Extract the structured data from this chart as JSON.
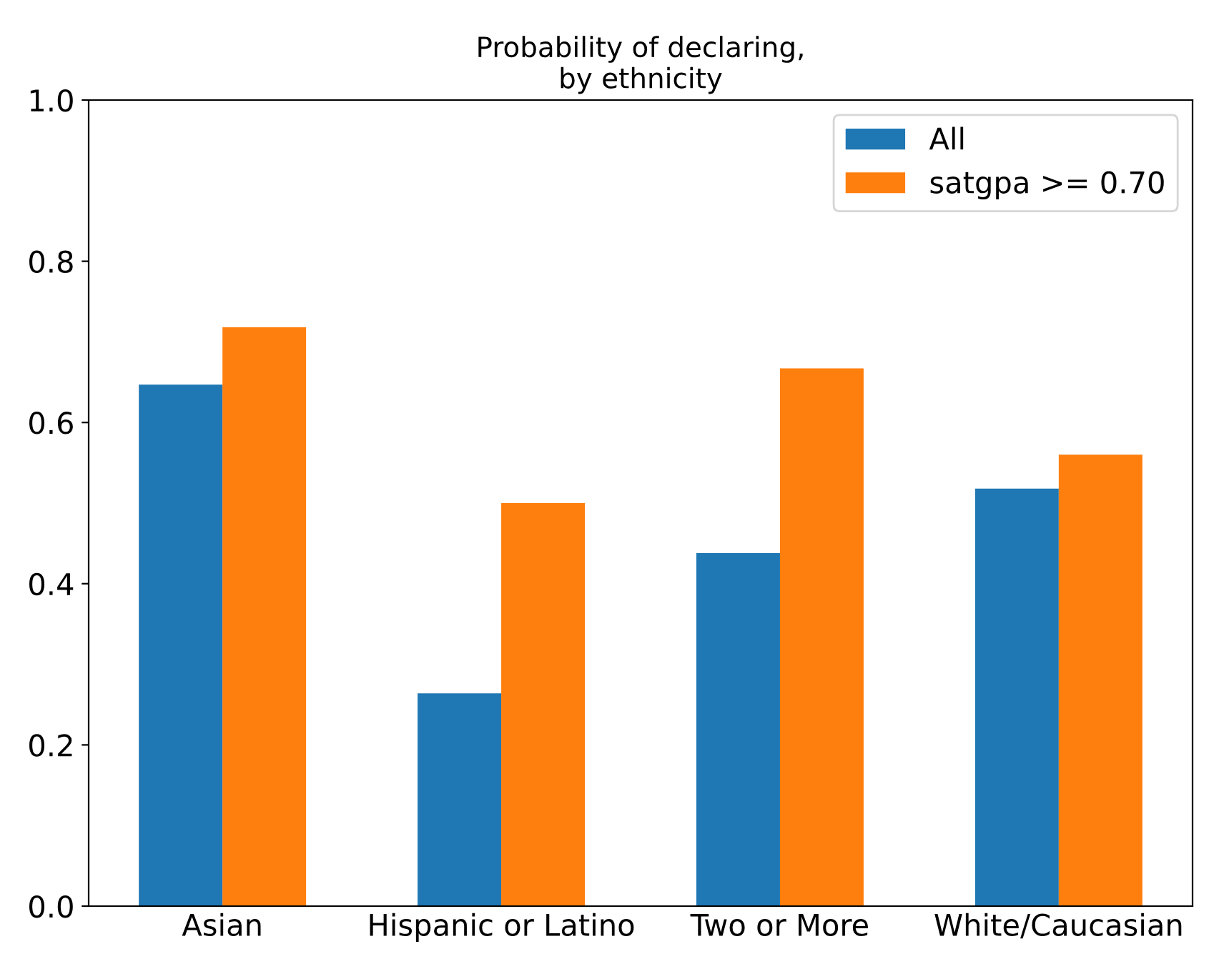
{
  "chart_data": {
    "type": "bar",
    "title": "Probability of declaring,\nby ethnicity",
    "categories": [
      "Asian",
      "Hispanic or Latino",
      "Two or More",
      "White/Caucasian"
    ],
    "series": [
      {
        "name": "All",
        "color": "#1f77b4",
        "values": [
          0.647,
          0.264,
          0.438,
          0.518
        ]
      },
      {
        "name": "satgpa >= 0.70",
        "color": "#ff7f0e",
        "values": [
          0.718,
          0.5,
          0.667,
          0.56
        ]
      }
    ],
    "ylim": [
      0,
      1.0
    ],
    "yticks": [
      {
        "value": 0,
        "label": "0.0"
      },
      {
        "value": 0.2,
        "label": "0.2"
      },
      {
        "value": 0.4,
        "label": "0.4"
      },
      {
        "value": 0.6,
        "label": "0.6"
      },
      {
        "value": 0.8,
        "label": "0.8"
      },
      {
        "value": 1.0,
        "label": "1.0"
      }
    ],
    "grid": false,
    "legend": "top right"
  }
}
